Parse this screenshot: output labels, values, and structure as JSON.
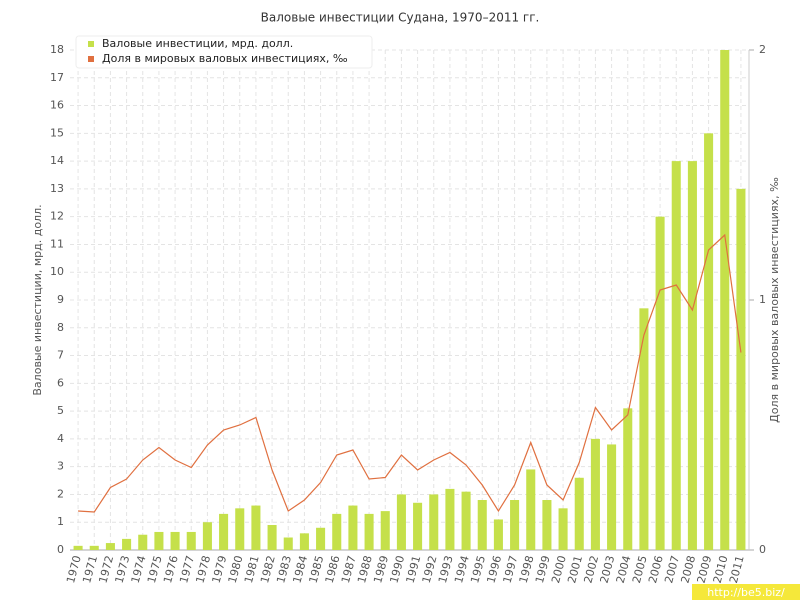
{
  "chart_data": {
    "type": "bar_line",
    "title": "Валовые инвестиции Судана, 1970–2011 гг.",
    "y_label": "Валовые инвестиции, мрд. долл.",
    "y2_label": "Доля в мировых валовых инвестициях, ‰",
    "watermark": "http://be5.biz/",
    "categories": [
      "1970",
      "1971",
      "1972",
      "1973",
      "1974",
      "1975",
      "1976",
      "1977",
      "1978",
      "1979",
      "1980",
      "1981",
      "1982",
      "1983",
      "1984",
      "1985",
      "1986",
      "1987",
      "1988",
      "1989",
      "1990",
      "1991",
      "1992",
      "1993",
      "1994",
      "1995",
      "1996",
      "1997",
      "1998",
      "1999",
      "2000",
      "2001",
      "2002",
      "2003",
      "2004",
      "2005",
      "2006",
      "2007",
      "2008",
      "2009",
      "2010",
      "2011"
    ],
    "series": [
      {
        "name": "Валовые инвестиции, мрд. долл.",
        "type": "bar",
        "color": "#c5e04a",
        "values": [
          0.15,
          0.15,
          0.25,
          0.4,
          0.55,
          0.65,
          0.65,
          0.65,
          1.0,
          1.3,
          1.5,
          1.6,
          0.9,
          0.45,
          0.6,
          0.8,
          1.3,
          1.6,
          1.3,
          1.4,
          2.0,
          1.7,
          2.0,
          2.2,
          2.1,
          1.8,
          1.1,
          1.8,
          2.9,
          1.8,
          1.5,
          2.6,
          4.0,
          3.8,
          5.1,
          8.7,
          12,
          14,
          14,
          15,
          18,
          13
        ]
      },
      {
        "name": "Доля в мировых валовых инвестициях, ‰",
        "type": "line",
        "axis": "y2",
        "color": "#e07040",
        "values": [
          0.156,
          0.152,
          0.25,
          0.284,
          0.36,
          0.41,
          0.36,
          0.33,
          0.42,
          0.48,
          0.5,
          0.53,
          0.32,
          0.156,
          0.2,
          0.27,
          0.38,
          0.4,
          0.284,
          0.29,
          0.38,
          0.32,
          0.36,
          0.39,
          0.34,
          0.26,
          0.156,
          0.26,
          0.43,
          0.26,
          0.2,
          0.35,
          0.57,
          0.48,
          0.54,
          0.86,
          1.04,
          1.06,
          0.96,
          1.2,
          1.26,
          0.79
        ]
      }
    ],
    "ylim": [
      0,
      18
    ],
    "yticks": [
      0,
      1,
      2,
      3,
      4,
      5,
      6,
      7,
      8,
      9,
      10,
      11,
      12,
      13,
      14,
      15,
      16,
      17,
      18
    ],
    "y2lim": [
      0,
      2
    ],
    "y2ticks": [
      0,
      1,
      2
    ],
    "grid": true,
    "legend": "top-left"
  }
}
